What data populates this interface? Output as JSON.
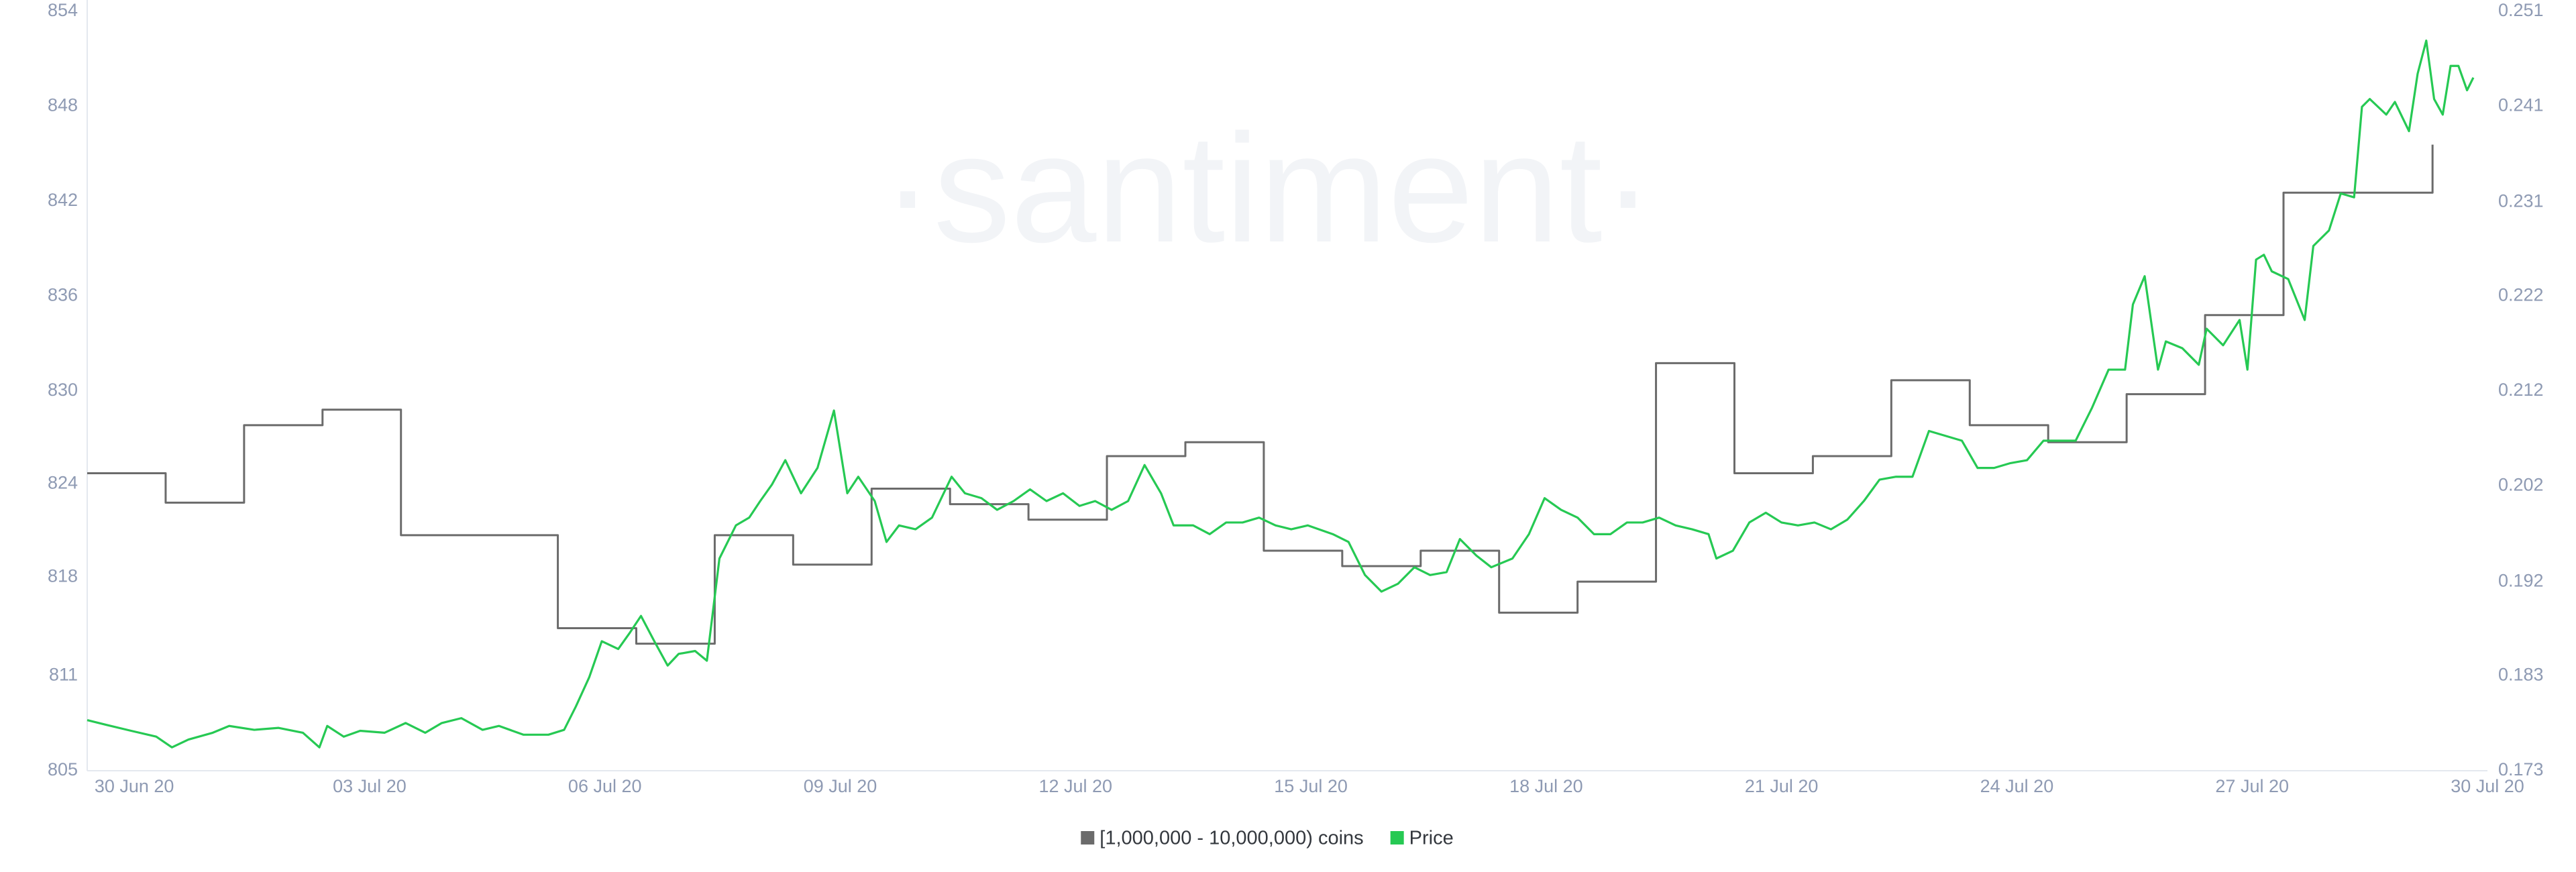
{
  "chart_data": {
    "type": "line",
    "watermark": "·santiment·",
    "xlim": [
      -0.6,
      30
    ],
    "xticks": [
      {
        "value": 0,
        "label": "30 Jun 20"
      },
      {
        "value": 3,
        "label": "03 Jul 20"
      },
      {
        "value": 6,
        "label": "06 Jul 20"
      },
      {
        "value": 9,
        "label": "09 Jul 20"
      },
      {
        "value": 12,
        "label": "12 Jul 20"
      },
      {
        "value": 15,
        "label": "15 Jul 20"
      },
      {
        "value": 18,
        "label": "18 Jul 20"
      },
      {
        "value": 21,
        "label": "21 Jul 20"
      },
      {
        "value": 24,
        "label": "24 Jul 20"
      },
      {
        "value": 27,
        "label": "27 Jul 20"
      },
      {
        "value": 30,
        "label": "30 Jul 20"
      }
    ],
    "ylim": [
      805,
      854
    ],
    "yticks": [
      805,
      {
        "value": 811.125,
        "label": "811"
      },
      {
        "value": 817.5,
        "label": "818"
      },
      {
        "value": 823.5,
        "label": "824"
      },
      {
        "value": 829.5,
        "label": "830"
      },
      {
        "value": 835.625,
        "label": "836"
      },
      {
        "value": 841.75,
        "label": "842"
      },
      {
        "value": 847.875,
        "label": "848"
      },
      854
    ],
    "y2lim": [
      0.173,
      0.251
    ],
    "y2ticks": [
      0.173,
      {
        "value": 0.18275,
        "label": "0.183"
      },
      {
        "value": 0.1924,
        "label": "0.192"
      },
      {
        "value": 0.20225,
        "label": "0.202"
      },
      0.212,
      {
        "value": 0.22175,
        "label": "0.222"
      },
      {
        "value": 0.2314,
        "label": "0.231"
      },
      {
        "value": 0.24125,
        "label": "0.241"
      },
      0.251
    ],
    "grid": false,
    "legend": "bottom",
    "series": [
      {
        "name": "[1,000,000 - 10,000,000) coins",
        "color": "#6b6b6b",
        "step": true,
        "axis": "y",
        "x": [
          -0.6,
          0.4,
          1.4,
          2.4,
          3.4,
          4.4,
          5.4,
          6.4,
          7.4,
          8.4,
          9.4,
          10.4,
          11.4,
          12.4,
          13.4,
          14.4,
          15.4,
          16.4,
          17.4,
          18.4,
          19.4,
          20.4,
          21.4,
          22.4,
          23.4,
          24.4,
          25.4,
          26.4,
          27.4,
          28.4,
          29.3
        ],
        "values": [
          824.2,
          822.3,
          827.3,
          828.3,
          820.2,
          820.2,
          814.2,
          813.2,
          820.2,
          818.3,
          823.2,
          822.2,
          821.2,
          825.3,
          826.2,
          819.2,
          818.2,
          819.2,
          815.2,
          817.2,
          831.3,
          824.2,
          825.3,
          830.2,
          827.3,
          826.2,
          829.3,
          834.4,
          842.3,
          842.3,
          845.4
        ]
      },
      {
        "name": "Price",
        "color": "#26c953",
        "step": false,
        "axis": "y2",
        "x": [
          -0.6,
          -0.35,
          -0.04,
          0.28,
          0.48,
          0.69,
          1.0,
          1.21,
          1.53,
          1.84,
          2.15,
          2.36,
          2.46,
          2.67,
          2.88,
          3.19,
          3.46,
          3.71,
          3.92,
          4.17,
          4.44,
          4.65,
          4.96,
          5.28,
          5.48,
          5.63,
          5.8,
          5.96,
          6.17,
          6.32,
          6.46,
          6.63,
          6.8,
          6.94,
          7.15,
          7.3,
          7.46,
          7.67,
          7.84,
          7.98,
          8.13,
          8.3,
          8.5,
          8.71,
          8.92,
          9.09,
          9.23,
          9.44,
          9.59,
          9.75,
          9.96,
          10.17,
          10.42,
          10.59,
          10.8,
          11.0,
          11.21,
          11.42,
          11.63,
          11.84,
          12.05,
          12.25,
          12.46,
          12.67,
          12.88,
          13.09,
          13.25,
          13.5,
          13.71,
          13.92,
          14.13,
          14.34,
          14.55,
          14.75,
          14.96,
          15.28,
          15.48,
          15.69,
          15.9,
          16.11,
          16.32,
          16.52,
          16.73,
          16.9,
          17.11,
          17.3,
          17.57,
          17.78,
          17.98,
          18.19,
          18.4,
          18.61,
          18.82,
          19.03,
          19.23,
          19.44,
          19.65,
          19.86,
          20.07,
          20.17,
          20.38,
          20.59,
          20.8,
          21.0,
          21.21,
          21.42,
          21.63,
          21.84,
          22.05,
          22.25,
          22.46,
          22.67,
          22.88,
          23.09,
          23.3,
          23.5,
          23.71,
          23.92,
          24.13,
          24.34,
          24.55,
          24.75,
          24.96,
          25.17,
          25.38,
          25.48,
          25.63,
          25.8,
          25.9,
          26.11,
          26.32,
          26.42,
          26.63,
          26.84,
          26.94,
          27.05,
          27.15,
          27.25,
          27.46,
          27.67,
          27.78,
          27.98,
          28.13,
          28.3,
          28.4,
          28.5,
          28.71,
          28.82,
          29.0,
          29.11,
          29.22,
          29.32,
          29.43,
          29.53,
          29.63,
          29.74,
          29.82
        ],
        "values": [
          0.1782,
          0.1777,
          0.1771,
          0.1765,
          0.1754,
          0.1762,
          0.1769,
          0.1776,
          0.1772,
          0.1774,
          0.1769,
          0.1754,
          0.1776,
          0.1765,
          0.1771,
          0.1769,
          0.1779,
          0.1769,
          0.1779,
          0.1784,
          0.1772,
          0.1776,
          0.1767,
          0.1767,
          0.1772,
          0.1796,
          0.1826,
          0.1863,
          0.1855,
          0.1872,
          0.1889,
          0.1863,
          0.1838,
          0.185,
          0.1853,
          0.1843,
          0.1948,
          0.1982,
          0.199,
          0.2007,
          0.2024,
          0.2049,
          0.2015,
          0.2041,
          0.21,
          0.2015,
          0.2032,
          0.2007,
          0.1965,
          0.1982,
          0.1978,
          0.199,
          0.2032,
          0.2015,
          0.201,
          0.1998,
          0.2007,
          0.2019,
          0.2007,
          0.2015,
          0.2002,
          0.2007,
          0.1998,
          0.2007,
          0.2044,
          0.2015,
          0.1982,
          0.1982,
          0.1973,
          0.1985,
          0.1985,
          0.199,
          0.1982,
          0.1978,
          0.1982,
          0.1973,
          0.1965,
          0.1931,
          0.1914,
          0.1922,
          0.1939,
          0.1931,
          0.1934,
          0.1968,
          0.1951,
          0.1939,
          0.1948,
          0.1973,
          0.201,
          0.1998,
          0.199,
          0.1973,
          0.1973,
          0.1985,
          0.1985,
          0.199,
          0.1982,
          0.1978,
          0.1973,
          0.1948,
          0.1956,
          0.1985,
          0.1995,
          0.1985,
          0.1982,
          0.1985,
          0.1978,
          0.1988,
          0.2007,
          0.2029,
          0.2032,
          0.2032,
          0.2079,
          0.2074,
          0.2069,
          0.2041,
          0.2041,
          0.2046,
          0.2049,
          0.2069,
          0.2069,
          0.2069,
          0.2103,
          0.2142,
          0.2142,
          0.2209,
          0.2238,
          0.2142,
          0.2171,
          0.2164,
          0.2147,
          0.2184,
          0.2167,
          0.2193,
          0.2142,
          0.2255,
          0.226,
          0.2243,
          0.2235,
          0.2193,
          0.2269,
          0.2285,
          0.2323,
          0.2319,
          0.2412,
          0.242,
          0.2404,
          0.2417,
          0.2387,
          0.2446,
          0.248,
          0.242,
          0.2404,
          0.2454,
          0.2454,
          0.2429,
          0.2442
        ]
      }
    ]
  }
}
